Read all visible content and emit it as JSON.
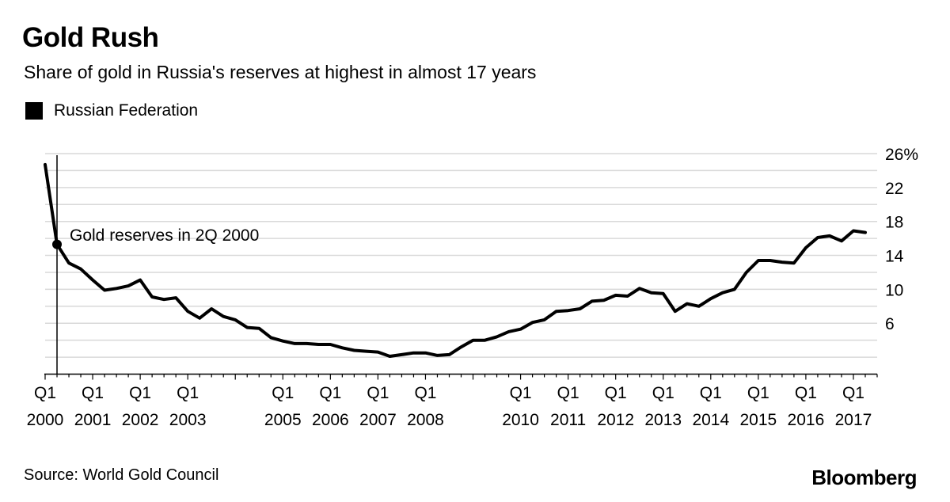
{
  "chart_data": {
    "type": "line",
    "title": "Gold Rush",
    "subtitle": "Share of gold in Russia's reserves at highest in almost 17 years",
    "xlabel": "",
    "ylabel": "",
    "ylim": [
      0,
      26
    ],
    "yticks": [
      {
        "value": 6,
        "label": "6"
      },
      {
        "value": 10,
        "label": "10"
      },
      {
        "value": 14,
        "label": "14"
      },
      {
        "value": 18,
        "label": "18"
      },
      {
        "value": 22,
        "label": "22"
      },
      {
        "value": 26,
        "label": "26%"
      }
    ],
    "xlim": [
      2000.0,
      2017.5
    ],
    "xticks": [
      {
        "x": 2000.0,
        "q": "Q1",
        "year": "2000"
      },
      {
        "x": 2001.0,
        "q": "Q1",
        "year": "2001"
      },
      {
        "x": 2002.0,
        "q": "Q1",
        "year": "2002"
      },
      {
        "x": 2003.0,
        "q": "Q1",
        "year": "2003"
      },
      {
        "x": 2005.0,
        "q": "Q1",
        "year": "2005"
      },
      {
        "x": 2006.0,
        "q": "Q1",
        "year": "2006"
      },
      {
        "x": 2007.0,
        "q": "Q1",
        "year": "2007"
      },
      {
        "x": 2008.0,
        "q": "Q1",
        "year": "2008"
      },
      {
        "x": 2010.0,
        "q": "Q1",
        "year": "2010"
      },
      {
        "x": 2011.0,
        "q": "Q1",
        "year": "2011"
      },
      {
        "x": 2012.0,
        "q": "Q1",
        "year": "2012"
      },
      {
        "x": 2013.0,
        "q": "Q1",
        "year": "2013"
      },
      {
        "x": 2014.0,
        "q": "Q1",
        "year": "2014"
      },
      {
        "x": 2015.0,
        "q": "Q1",
        "year": "2015"
      },
      {
        "x": 2016.0,
        "q": "Q1",
        "year": "2016"
      },
      {
        "x": 2017.0,
        "q": "Q1",
        "year": "2017"
      }
    ],
    "legend_position": "top-left",
    "grid": true,
    "series": [
      {
        "name": "Russian Federation",
        "color": "#000000",
        "x": [
          2000.0,
          2000.25,
          2000.5,
          2000.75,
          2001.0,
          2001.25,
          2001.5,
          2001.75,
          2002.0,
          2002.25,
          2002.5,
          2002.75,
          2003.0,
          2003.25,
          2003.5,
          2003.75,
          2004.0,
          2004.25,
          2004.5,
          2004.75,
          2005.0,
          2005.25,
          2005.5,
          2005.75,
          2006.0,
          2006.25,
          2006.5,
          2006.75,
          2007.0,
          2007.25,
          2007.5,
          2007.75,
          2008.0,
          2008.25,
          2008.5,
          2008.75,
          2009.0,
          2009.25,
          2009.5,
          2009.75,
          2010.0,
          2010.25,
          2010.5,
          2010.75,
          2011.0,
          2011.25,
          2011.5,
          2011.75,
          2012.0,
          2012.25,
          2012.5,
          2012.75,
          2013.0,
          2013.25,
          2013.5,
          2013.75,
          2014.0,
          2014.25,
          2014.5,
          2014.75,
          2015.0,
          2015.25,
          2015.5,
          2015.75,
          2016.0,
          2016.25,
          2016.5,
          2016.75,
          2017.0,
          2017.25
        ],
        "values": [
          24.7,
          15.3,
          13.1,
          12.4,
          11.1,
          9.9,
          10.1,
          10.4,
          11.1,
          9.1,
          8.8,
          9.0,
          7.4,
          6.6,
          7.7,
          6.8,
          6.4,
          5.5,
          5.4,
          4.3,
          3.9,
          3.6,
          3.6,
          3.5,
          3.5,
          3.1,
          2.8,
          2.7,
          2.6,
          2.1,
          2.3,
          2.5,
          2.5,
          2.2,
          2.3,
          3.2,
          4.0,
          4.0,
          4.4,
          5.0,
          5.3,
          6.1,
          6.4,
          7.4,
          7.5,
          7.7,
          8.6,
          8.7,
          9.3,
          9.2,
          10.1,
          9.6,
          9.5,
          7.4,
          8.3,
          8.0,
          8.9,
          9.6,
          10.0,
          12.0,
          13.4,
          13.4,
          13.2,
          13.1,
          14.9,
          16.1,
          16.3,
          15.7,
          16.9,
          16.7
        ]
      }
    ],
    "annotations": [
      {
        "text": "Gold reserves in 2Q 2000",
        "x": 2000.25,
        "y": 15.3
      }
    ]
  },
  "footer": {
    "source": "Source: World Gold Council",
    "brand": "Bloomberg"
  }
}
